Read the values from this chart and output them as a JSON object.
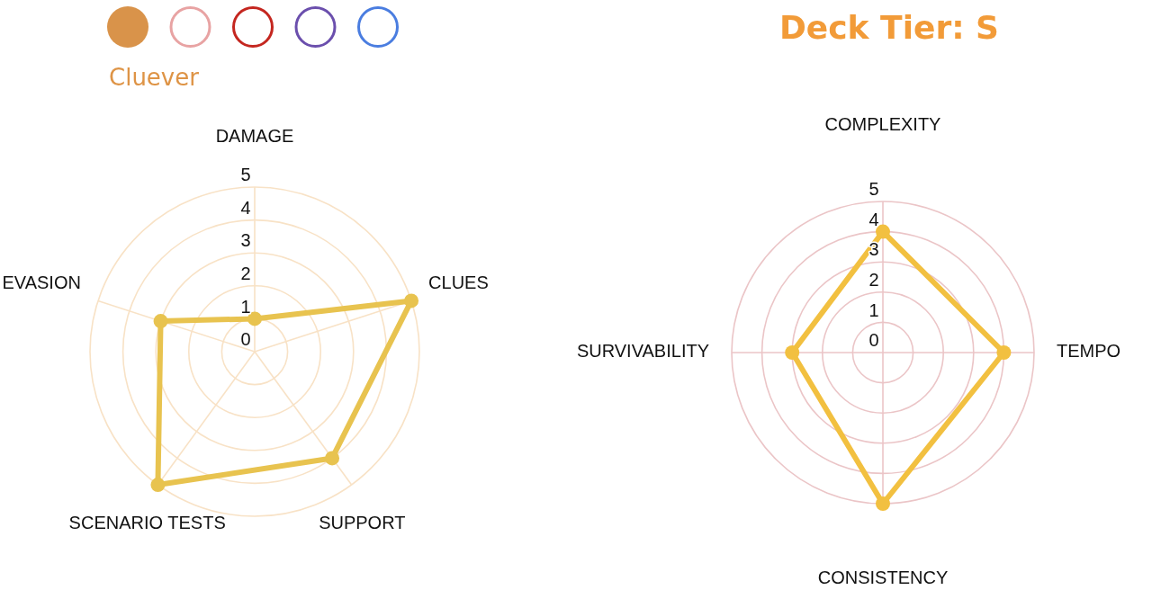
{
  "chart_data": [
    {
      "type": "radar",
      "title": "Cluever",
      "categories": [
        "DAMAGE",
        "CLUES",
        "SUPPORT",
        "SCENARIO TESTS",
        "EVASION"
      ],
      "series": [
        {
          "color": "#e8c34f",
          "values": [
            1,
            5,
            4,
            5,
            3
          ]
        }
      ],
      "ylim": [
        0,
        5
      ],
      "yticks": [
        0,
        1,
        2,
        3,
        4,
        5
      ],
      "grid": true,
      "marker": "circle"
    },
    {
      "type": "radar",
      "title": "Deck Tier: S",
      "categories": [
        "COMPLEXITY",
        "TEMPO",
        "CONSISTENCY",
        "SURVIVABILITY"
      ],
      "series": [
        {
          "color": "#f2c040",
          "values": [
            4,
            4,
            5,
            3
          ]
        }
      ],
      "ylim": [
        0,
        5
      ],
      "yticks": [
        0,
        1,
        2,
        3,
        4,
        5
      ],
      "grid": true,
      "marker": "circle"
    }
  ]
}
